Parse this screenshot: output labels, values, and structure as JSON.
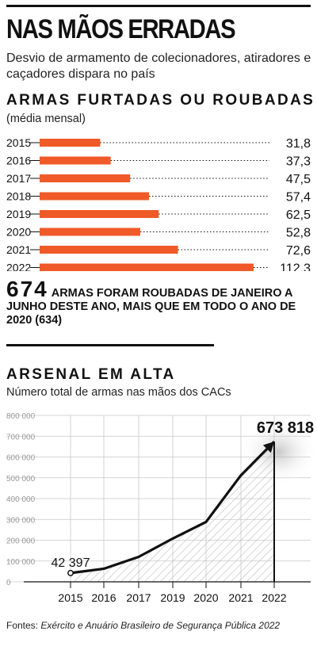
{
  "header": {
    "title": "NAS MÃOS ERRADAS",
    "subtitle": "Desvio de armamento de colecionadores, atiradores e caçadores dispara no país"
  },
  "section1": {
    "title": "ARMAS FURTADAS OU ROUBADAS",
    "subtitle": "(média mensal)"
  },
  "callout": {
    "number": "674",
    "text": "ARMAS FORAM ROUBADAS DE JANEIRO A JUNHO DESTE ANO, MAIS QUE EM TODO O ANO DE 2020 (634)"
  },
  "section2": {
    "title": "ARSENAL EM ALTA",
    "subtitle": "Número total de armas nas mãos dos CACs"
  },
  "footer": {
    "label": "Fontes: ",
    "text": "Exército e Anuário Brasileiro de Segurança Pública 2022"
  },
  "colors": {
    "bar": "#f05a28",
    "ink": "#111111",
    "grid": "#c8c8c8",
    "axis_label": "#9a9a9a"
  },
  "chart_data": [
    {
      "type": "bar",
      "orientation": "horizontal",
      "title": "ARMAS FURTADAS OU ROUBADAS",
      "subtitle": "(média mensal)",
      "categories": [
        "2015",
        "2016",
        "2017",
        "2018",
        "2019",
        "2020",
        "2021",
        "2022"
      ],
      "values": [
        31.8,
        37.3,
        47.5,
        57.4,
        62.5,
        52.8,
        72.6,
        112.3
      ],
      "value_labels": [
        "31,8",
        "37,3",
        "47,5",
        "57,4",
        "62,5",
        "52,8",
        "72,6",
        "112,3"
      ],
      "xlim": [
        0,
        112.3
      ],
      "grid": false,
      "legend": "none"
    },
    {
      "type": "area",
      "title": "ARSENAL EM ALTA",
      "subtitle": "Número total de armas nas mãos dos CACs",
      "x": [
        "2015",
        "2016",
        "2017",
        "2019",
        "2020",
        "2021",
        "2022"
      ],
      "values": [
        42397,
        63000,
        120000,
        208000,
        288000,
        512000,
        673818
      ],
      "annotations": [
        {
          "x": "2015",
          "label": "42 397"
        },
        {
          "x": "2022",
          "label": "673 818"
        }
      ],
      "ylim": [
        0,
        800000
      ],
      "yticks": [
        0,
        100000,
        200000,
        300000,
        400000,
        500000,
        600000,
        700000,
        800000
      ],
      "ytick_labels": [
        "0",
        "100 000",
        "200 000",
        "300 000",
        "400 000",
        "500 000",
        "600 000",
        "700 000",
        "800 000"
      ],
      "grid": true,
      "legend": "none"
    }
  ]
}
